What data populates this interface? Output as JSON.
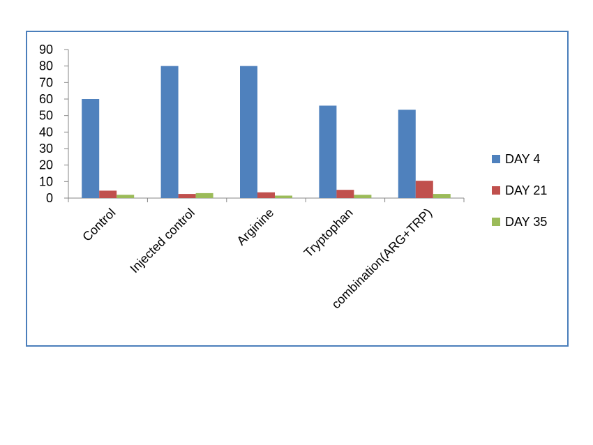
{
  "chart_data": {
    "type": "bar",
    "title": "",
    "xlabel": "",
    "ylabel": "",
    "ylim": [
      0,
      90
    ],
    "yticks": [
      0,
      10,
      20,
      30,
      40,
      50,
      60,
      70,
      80,
      90
    ],
    "categories": [
      "Control",
      "Injected control",
      "Arginine",
      "Tryptophan",
      "combination(ARG+TRP)"
    ],
    "series": [
      {
        "name": "DAY 4",
        "color": "#4f81bd",
        "values": [
          60,
          80,
          80,
          56,
          53.5
        ]
      },
      {
        "name": "DAY 21",
        "color": "#c0504d",
        "values": [
          4.5,
          2.5,
          3.5,
          5,
          10.5
        ]
      },
      {
        "name": "DAY 35",
        "color": "#9bbb59",
        "values": [
          2,
          3,
          1.5,
          2,
          2.5
        ]
      }
    ],
    "grid": false,
    "legend_position": "right"
  }
}
